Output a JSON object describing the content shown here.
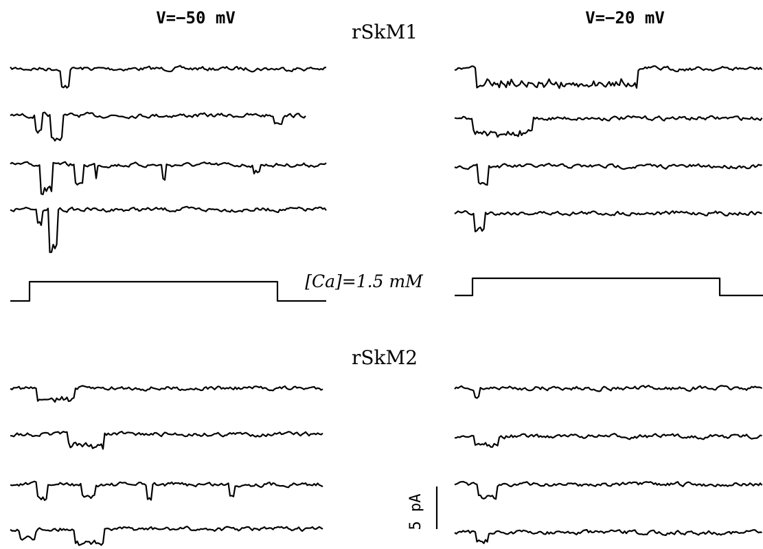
{
  "figure": {
    "left_voltage": "V=−50 mV",
    "right_voltage": "V=−20 mV",
    "top_title": "rSkM1",
    "bottom_title": "rSkM2",
    "pulse_label": "[Ca]=1.5 mM",
    "scale_label": "5 pA"
  }
}
